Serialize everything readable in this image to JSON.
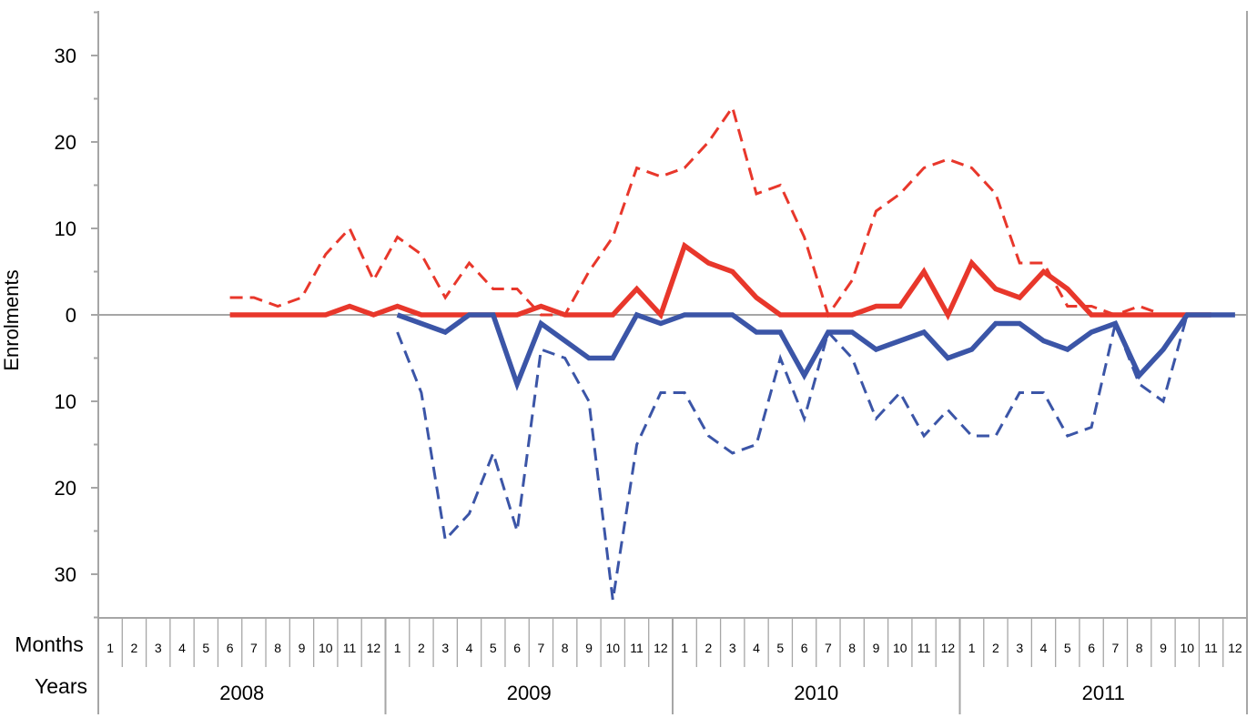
{
  "chart_data": {
    "type": "line",
    "title": "",
    "ylabel": "Enrolments",
    "ylim": [
      -35,
      35
    ],
    "y_ticks": [
      {
        "value": 30,
        "label": "30"
      },
      {
        "value": 20,
        "label": "20"
      },
      {
        "value": 10,
        "label": "10"
      },
      {
        "value": 0,
        "label": "0"
      },
      {
        "value": -10,
        "label": "10"
      },
      {
        "value": -20,
        "label": "20"
      },
      {
        "value": -30,
        "label": "30"
      }
    ],
    "row_labels": {
      "months": "Months",
      "years": "Years"
    },
    "years": [
      "2008",
      "2009",
      "2010",
      "2011"
    ],
    "months": [
      "1",
      "2",
      "3",
      "4",
      "5",
      "6",
      "7",
      "8",
      "9",
      "10",
      "11",
      "12"
    ],
    "colors": {
      "red": "#e8372b",
      "blue": "#3b55a7",
      "axis": "#a6a6a6"
    },
    "series": [
      {
        "color": "red",
        "style": "dashed",
        "start_index": 5,
        "values": [
          2,
          2,
          1,
          2,
          7,
          10,
          4,
          9,
          7,
          2,
          6,
          3,
          3,
          0,
          0,
          5,
          9,
          17,
          16,
          17,
          20,
          24,
          14,
          15,
          9,
          0,
          4,
          12,
          14,
          17,
          18,
          17,
          14,
          6,
          6,
          1,
          1,
          0,
          1,
          0
        ]
      },
      {
        "color": "red",
        "style": "solid",
        "start_index": 5,
        "values": [
          0,
          0,
          0,
          0,
          0,
          1,
          0,
          1,
          0,
          0,
          0,
          0,
          0,
          1,
          0,
          0,
          0,
          3,
          0,
          8,
          6,
          5,
          2,
          0,
          0,
          0,
          0,
          1,
          1,
          5,
          0,
          6,
          3,
          2,
          5,
          3,
          0,
          0,
          0,
          0,
          0,
          0
        ]
      },
      {
        "color": "blue",
        "style": "solid",
        "start_index": 12,
        "values": [
          0,
          -1,
          -2,
          0,
          0,
          -8,
          -1,
          -3,
          -5,
          -5,
          0,
          -1,
          0,
          0,
          0,
          -2,
          -2,
          -7,
          -2,
          -2,
          -4,
          -3,
          -2,
          -5,
          -4,
          -1,
          -1,
          -3,
          -4,
          -2,
          -1,
          -7,
          -4,
          0,
          0,
          0
        ]
      },
      {
        "color": "blue",
        "style": "dashed",
        "start_index": 12,
        "values": [
          -2,
          -9,
          -26,
          -23,
          -16,
          -25,
          -4,
          -5,
          -10,
          -33,
          -15,
          -9,
          -9,
          -14,
          -16,
          -15,
          -5,
          -12,
          -2,
          -5,
          -12,
          -9,
          -14,
          -11,
          -14,
          -14,
          -9,
          -9,
          -14,
          -13,
          -1,
          -8,
          -10,
          0
        ]
      }
    ]
  }
}
